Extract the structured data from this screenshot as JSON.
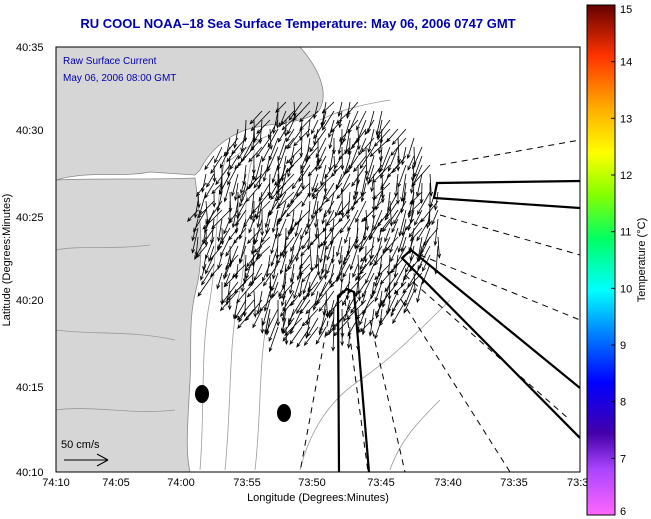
{
  "title": "RU COOL  NOAA–18  Sea Surface Temperature:  May 06, 2006 0747 GMT",
  "annotations": {
    "line1": "Raw Surface Current",
    "line2": "May 06, 2006 08:00 GMT",
    "scale": "50 cm/s"
  },
  "axes": {
    "xlabel": "Longitude (Degrees:Minutes)",
    "ylabel": "Latitude (Degrees:Minutes)",
    "xticks": [
      "74:10",
      "74:05",
      "74:00",
      "73:55",
      "73:50",
      "73:45",
      "73:40",
      "73:35",
      "73:3"
    ],
    "yticks": [
      "40:35",
      "40:30",
      "40:25",
      "40:20",
      "40:15",
      "40:10"
    ]
  },
  "colorbar": {
    "label": "Temperature (°C)",
    "ticks": [
      "15",
      "14",
      "13",
      "12",
      "11",
      "10",
      "9",
      "8",
      "7",
      "6"
    ],
    "min": 6,
    "max": 15
  },
  "colors": {
    "title": "#0000aa",
    "annotation": "#0000aa",
    "land": "#d8d8d8",
    "contour": "#9a9a9a"
  }
}
